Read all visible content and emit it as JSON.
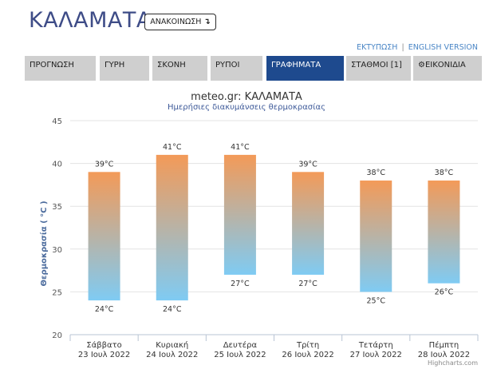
{
  "header": {
    "city": "ΚΑΛΑΜΑΤΑ",
    "announce_label": "ΑΝΑΚΟΙΝΩΣΗ",
    "announce_icon": "down-arrow-icon"
  },
  "top_links": {
    "print": "ΕΚΤΥΠΩΣΗ",
    "separator": "|",
    "english": "ENGLISH VERSION"
  },
  "nav": {
    "tabs": [
      {
        "label": "ΠΡΟΓΝΩΣΗ",
        "active": false
      },
      {
        "label": "ΓΥΡΗ",
        "active": false
      },
      {
        "label": "ΣΚΟΝΗ",
        "active": false
      },
      {
        "label": "ΡΥΠΟΙ",
        "active": false
      },
      {
        "label": "ΓΡΑΦΗΜΑΤΑ",
        "active": true
      },
      {
        "label": "ΣΤΑΘΜΟΙ [1]",
        "active": false
      },
      {
        "label": "ΕΙΚΟΝΙΔΙΑ",
        "active": false,
        "icon": "gear-icon"
      }
    ]
  },
  "chart_data": {
    "type": "bar",
    "subtype": "columnrange",
    "title": "meteo.gr: ΚΑΛΑΜΑΤΑ",
    "subtitle": "Ημερήσιες διακυμάνσεις θερμοκρασίας",
    "ylabel": "Θερμοκρασία ( °C )",
    "ylim": [
      20,
      45
    ],
    "yticks": [
      "20",
      "25",
      "30",
      "35",
      "40",
      "45"
    ],
    "grid": true,
    "categories": [
      {
        "day": "Σάββατο",
        "date": "23 Ιουλ 2022"
      },
      {
        "day": "Κυριακή",
        "date": "24 Ιουλ 2022"
      },
      {
        "day": "Δευτέρα",
        "date": "25 Ιουλ 2022"
      },
      {
        "day": "Τρίτη",
        "date": "26 Ιουλ 2022"
      },
      {
        "day": "Τετάρτη",
        "date": "27 Ιουλ 2022"
      },
      {
        "day": "Πέμπτη",
        "date": "28 Ιουλ 2022"
      }
    ],
    "low": [
      24,
      24,
      27,
      27,
      25,
      26
    ],
    "high": [
      39,
      41,
      41,
      39,
      38,
      38
    ],
    "low_labels": [
      "24°C",
      "24°C",
      "27°C",
      "27°C",
      "25°C",
      "26°C"
    ],
    "high_labels": [
      "39°C",
      "41°C",
      "41°C",
      "39°C",
      "38°C",
      "38°C"
    ],
    "colors": {
      "warm": "#f39a58",
      "cool": "#7fcbf3",
      "title": "#333333",
      "subtitle": "#3e5a99",
      "axis_label": "#4a6a9c"
    },
    "credits": "Highcharts.com"
  }
}
